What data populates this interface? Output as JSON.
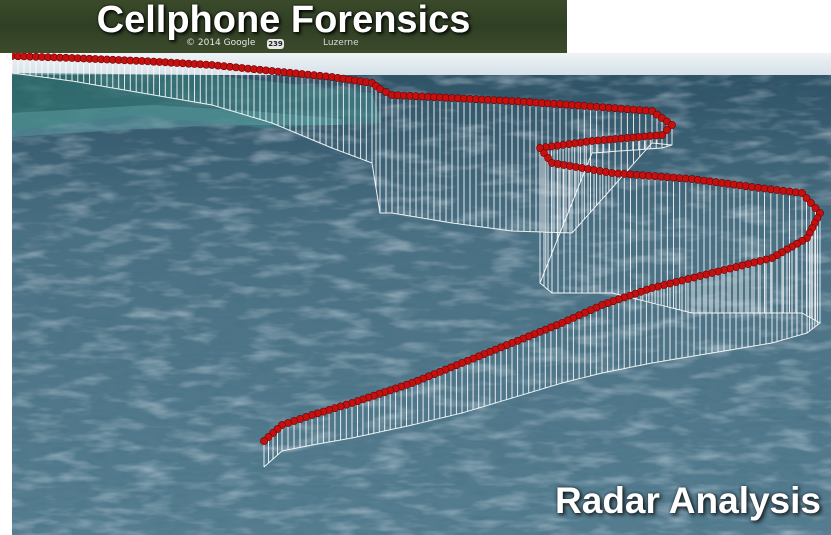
{
  "banner": {
    "title": "Cellphone Forensics",
    "copyright": "© 2014 Google",
    "road_shield": "239",
    "town": "Luzerne"
  },
  "corner_label": "Radar Analysis",
  "colors": {
    "ocean": "#3f6478",
    "sky": "#dfe8ee",
    "track_point": "#c4100f",
    "curtain": "#ffffff"
  }
}
